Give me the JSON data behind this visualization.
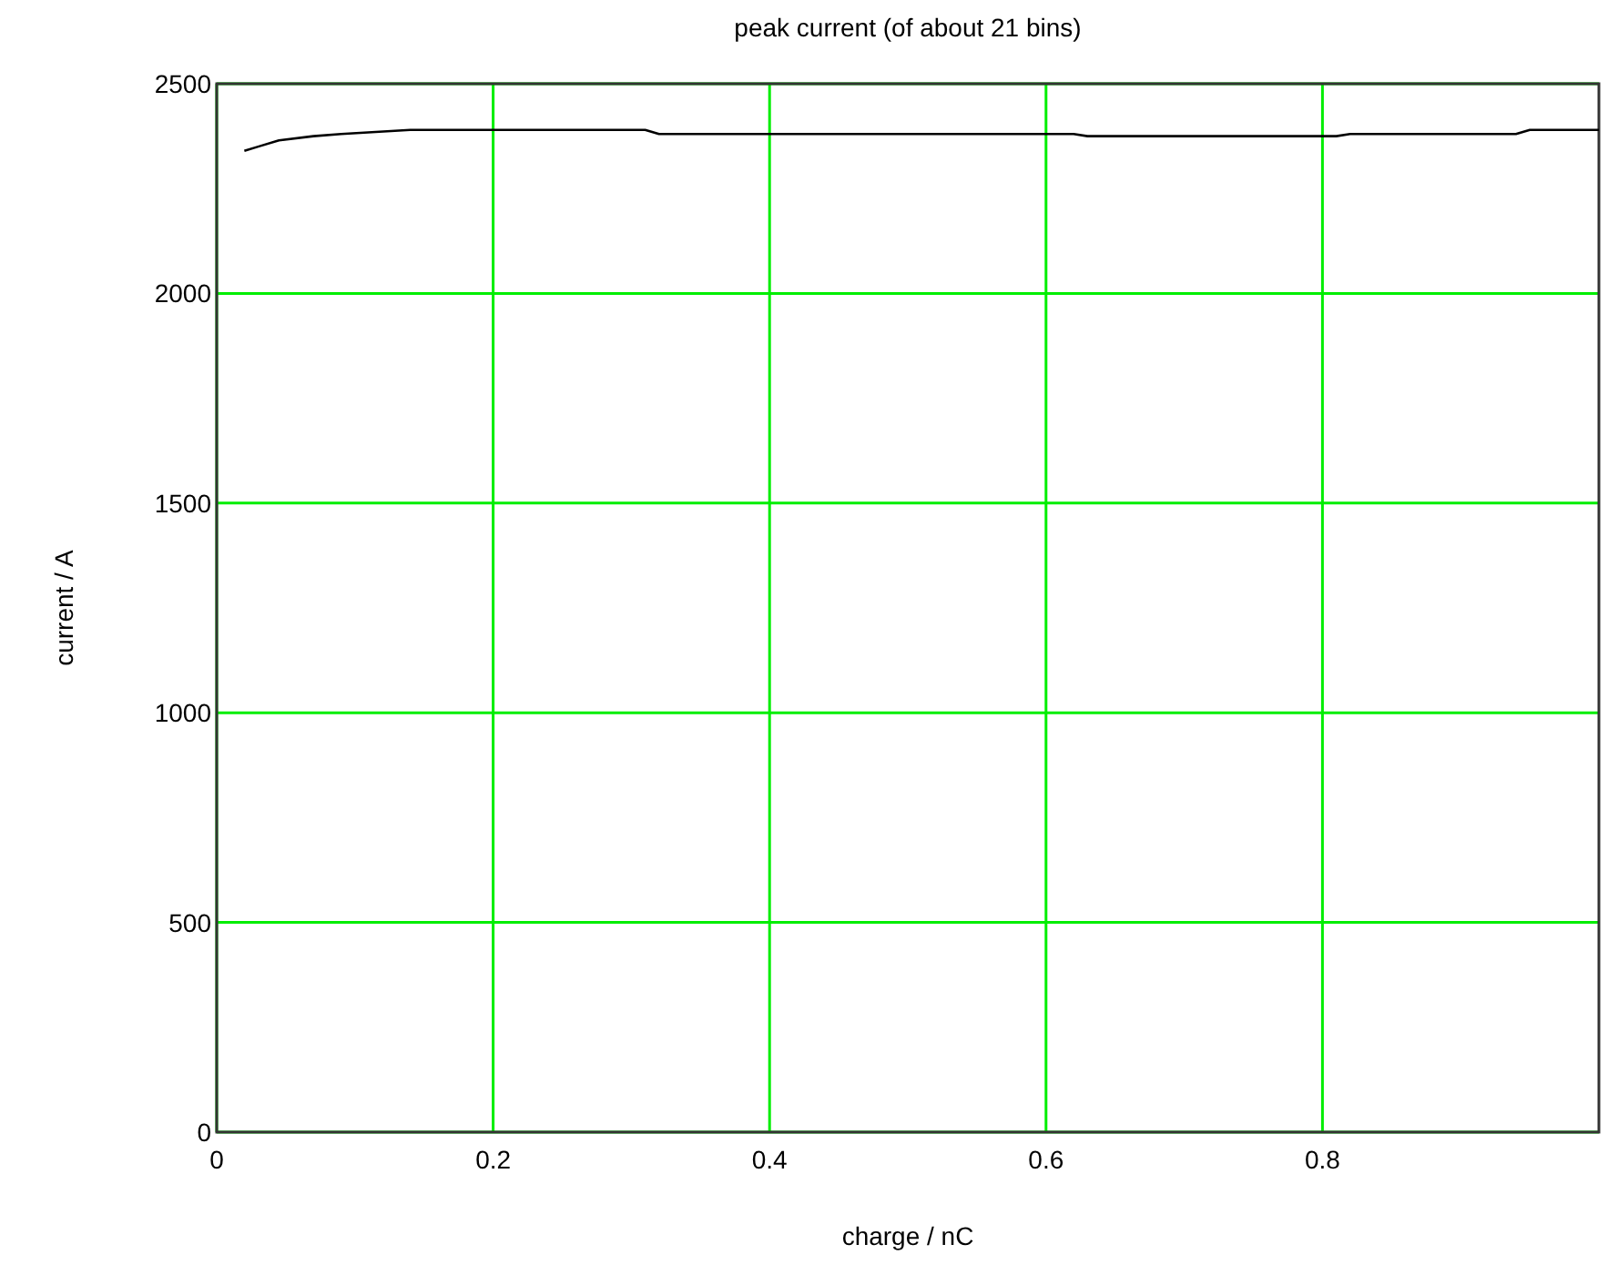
{
  "chart_data": {
    "type": "line",
    "title": "peak current (of about 21 bins)",
    "xlabel": "charge / nC",
    "ylabel": "current / A",
    "x": [
      0.02,
      0.03,
      0.045,
      0.07,
      0.09,
      0.14,
      0.31,
      0.32,
      0.62,
      0.63,
      0.81,
      0.82,
      0.94,
      0.95,
      1.0
    ],
    "series": [
      {
        "color": "#000000",
        "values": [
          2340,
          2350,
          2365,
          2375,
          2380,
          2390,
          2390,
          2380,
          2380,
          2375,
          2375,
          2380,
          2380,
          2390,
          2390
        ]
      }
    ],
    "xlim": [
      0,
      1
    ],
    "xticks": [
      0,
      0.2,
      0.4,
      0.6,
      0.8
    ],
    "ylim": [
      0,
      2500
    ],
    "yticks": [
      0,
      500,
      1000,
      1500,
      2000,
      2500
    ],
    "grid": true,
    "marker": "none",
    "line_style": "solid"
  }
}
